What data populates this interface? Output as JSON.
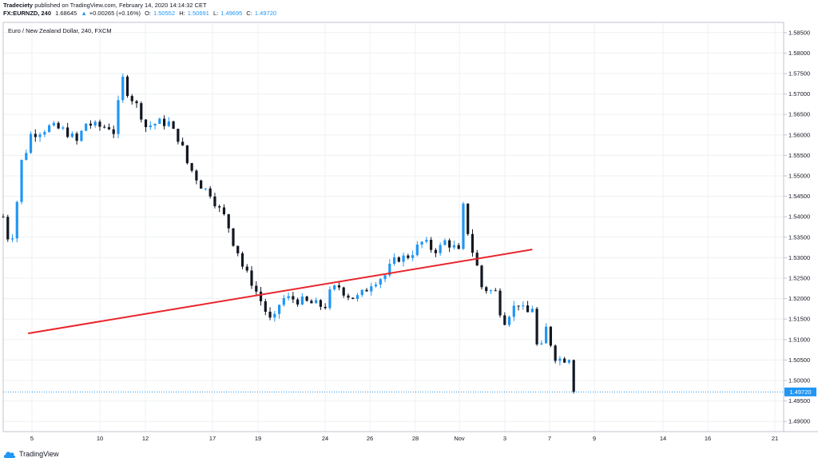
{
  "header": {
    "publisher": "Tradeciety",
    "published_text": "published on TradingView.com, February 14, 2020 14:14:32 CET",
    "symbol": "FX:EURNZD, 240",
    "symbol_price": "1.68645",
    "symbol_change": "+0.00265 (+0.16%)",
    "open_label": "O:",
    "open_value": "1.50552",
    "high_label": "H:",
    "high_value": "1.50691",
    "low_label": "L:",
    "low_value": "1.49695",
    "close_label": "C:",
    "close_value": "1.49720"
  },
  "footer": {
    "brand": "TradingView"
  },
  "colors": {
    "up": "#2196f3",
    "down": "#131722",
    "trendline": "#e8262c",
    "grid": "#eef0f3",
    "axis": "#c3c6ce"
  },
  "chart_data": {
    "type": "candlestick",
    "title": "Euro / New Zealand Dollar, 240, FXCM",
    "ylim": [
      1.4875,
      1.5875
    ],
    "y_ticks": [
      "1.58500",
      "1.58000",
      "1.57500",
      "1.57000",
      "1.56500",
      "1.56000",
      "1.55500",
      "1.55000",
      "1.54500",
      "1.54000",
      "1.53500",
      "1.53000",
      "1.52500",
      "1.52000",
      "1.51500",
      "1.51000",
      "1.50500",
      "1.50000",
      "1.49500",
      "1.49000"
    ],
    "x_ticks": [
      "5",
      "10",
      "12",
      "17",
      "19",
      "24",
      "26",
      "28",
      "Nov",
      "3",
      "7",
      "9",
      "14",
      "16",
      "21"
    ],
    "last_price": "1.49720",
    "trendline": {
      "from": [
        0.032,
        1.5115
      ],
      "to": [
        0.678,
        1.532
      ]
    },
    "keyframes": [
      [
        0,
        1.54
      ],
      [
        0.006,
        1.535
      ],
      [
        0.014,
        1.536
      ],
      [
        0.022,
        1.553
      ],
      [
        0.028,
        1.555
      ],
      [
        0.034,
        1.56
      ],
      [
        0.06,
        1.562
      ],
      [
        0.08,
        1.561
      ],
      [
        0.096,
        1.558
      ],
      [
        0.104,
        1.563
      ],
      [
        0.12,
        1.562
      ],
      [
        0.136,
        1.562
      ],
      [
        0.145,
        1.56
      ],
      [
        0.15,
        1.5755
      ],
      [
        0.158,
        1.571
      ],
      [
        0.175,
        1.566
      ],
      [
        0.182,
        1.562
      ],
      [
        0.198,
        1.563
      ],
      [
        0.212,
        1.563
      ],
      [
        0.22,
        1.56
      ],
      [
        0.226,
        1.559
      ],
      [
        0.236,
        1.553
      ],
      [
        0.246,
        1.55
      ],
      [
        0.256,
        1.547
      ],
      [
        0.265,
        1.546
      ],
      [
        0.276,
        1.542
      ],
      [
        0.287,
        1.539
      ],
      [
        0.292,
        1.535
      ],
      [
        0.302,
        1.531
      ],
      [
        0.308,
        1.527
      ],
      [
        0.316,
        1.525
      ],
      [
        0.326,
        1.521
      ],
      [
        0.334,
        1.518
      ],
      [
        0.34,
        1.515
      ],
      [
        0.346,
        1.514
      ],
      [
        0.356,
        1.52
      ],
      [
        0.37,
        1.52
      ],
      [
        0.39,
        1.519
      ],
      [
        0.402,
        1.5185
      ],
      [
        0.412,
        1.518
      ],
      [
        0.42,
        1.522
      ],
      [
        0.43,
        1.523
      ],
      [
        0.44,
        1.521
      ],
      [
        0.452,
        1.52
      ],
      [
        0.462,
        1.5215
      ],
      [
        0.472,
        1.524
      ],
      [
        0.482,
        1.525
      ],
      [
        0.492,
        1.526
      ],
      [
        0.496,
        1.528
      ],
      [
        0.506,
        1.53
      ],
      [
        0.516,
        1.53
      ],
      [
        0.528,
        1.532
      ],
      [
        0.538,
        1.534
      ],
      [
        0.55,
        1.532
      ],
      [
        0.558,
        1.532
      ],
      [
        0.566,
        1.534
      ],
      [
        0.575,
        1.533
      ],
      [
        0.585,
        1.531
      ],
      [
        0.59,
        1.5435
      ],
      [
        0.598,
        1.533
      ],
      [
        0.605,
        1.53
      ],
      [
        0.612,
        1.523
      ],
      [
        0.622,
        1.522
      ],
      [
        0.632,
        1.5215
      ],
      [
        0.64,
        1.514
      ],
      [
        0.65,
        1.517
      ],
      [
        0.66,
        1.519
      ],
      [
        0.67,
        1.516
      ],
      [
        0.678,
        1.518
      ],
      [
        0.686,
        1.505
      ],
      [
        0.696,
        1.513
      ],
      [
        0.706,
        1.506
      ],
      [
        0.716,
        1.505
      ],
      [
        0.725,
        1.506
      ],
      [
        0.731,
        1.4972
      ]
    ]
  }
}
